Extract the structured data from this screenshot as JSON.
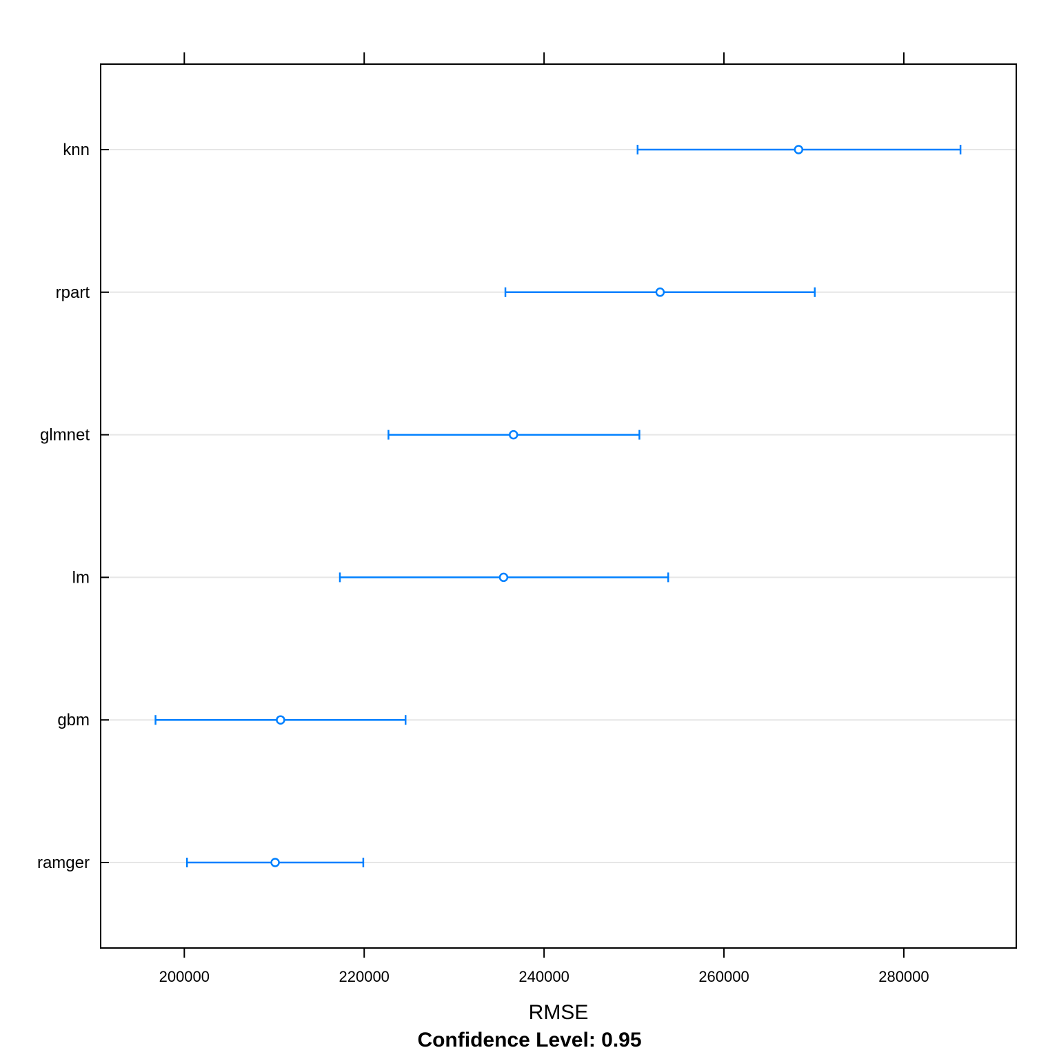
{
  "chart_data": {
    "type": "dotplot",
    "orientation": "horizontal",
    "categories": [
      "knn",
      "rpart",
      "glmnet",
      "lm",
      "gbm",
      "ramger"
    ],
    "estimates": [
      268300,
      252900,
      236600,
      235500,
      210700,
      210100
    ],
    "lower": [
      250400,
      235700,
      222700,
      217300,
      196800,
      200300
    ],
    "upper": [
      286300,
      270100,
      250600,
      253800,
      224600,
      219900
    ],
    "xlabel": "RMSE",
    "footnote": "Confidence Level: 0.95",
    "xlim": [
      190700,
      292500
    ],
    "xticks": [
      200000,
      220000,
      240000,
      260000,
      280000
    ],
    "xtick_labels": [
      "200000",
      "220000",
      "240000",
      "260000",
      "280000"
    ],
    "grid": true,
    "colors": {
      "series": "#0080ff",
      "gridline": "#e6e6e6",
      "axis": "#000000"
    }
  }
}
